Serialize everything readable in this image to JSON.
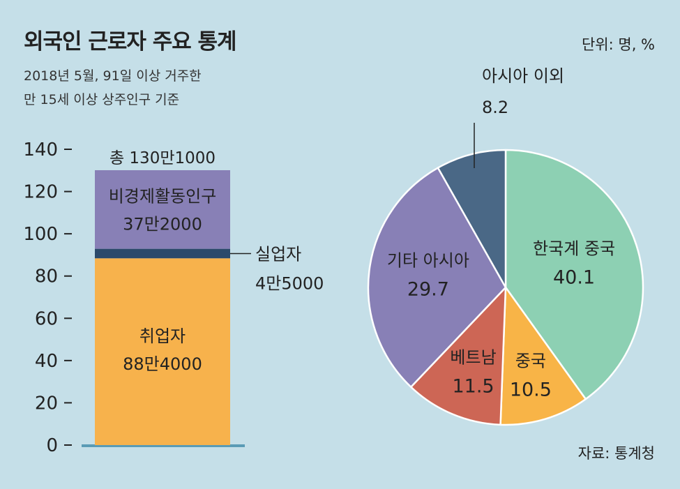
{
  "header": {
    "title": "외국인 근로자 주요 통계",
    "unit": "단위: 명, %",
    "subtitle_line1": "2018년 5월, 91일 이상 거주한",
    "subtitle_line2": "만 15세 이상 상주인구 기준",
    "source": "자료: 통계청"
  },
  "colors": {
    "background": "#c5dfe8",
    "employed": "#f7b24c",
    "unemployed": "#2c4a6b",
    "inactive": "#8880b6",
    "korean_chinese": "#8dd0b3",
    "chinese": "#f8b447",
    "vietnam": "#cd6655",
    "other_asia": "#8880b6",
    "non_asia": "#4a6886",
    "baseline": "#5a9bb5"
  },
  "chart_data": [
    {
      "type": "bar",
      "stacked": true,
      "ylim": [
        0,
        140
      ],
      "yticks": [
        "0",
        "20",
        "40",
        "60",
        "80",
        "100",
        "120",
        "140"
      ],
      "total_label": "총 130만1000",
      "segments": [
        {
          "name": "취업자",
          "value": 88.4,
          "label": "88만4000"
        },
        {
          "name": "실업자",
          "value": 4.5,
          "label": "4만5000"
        },
        {
          "name": "비경제활동인구",
          "value": 37.2,
          "label": "37만2000"
        }
      ]
    },
    {
      "type": "pie",
      "slices": [
        {
          "name": "한국계 중국",
          "value": 40.1,
          "label": "40.1"
        },
        {
          "name": "중국",
          "value": 10.5,
          "label": "10.5"
        },
        {
          "name": "베트남",
          "value": 11.5,
          "label": "11.5"
        },
        {
          "name": "기타 아시아",
          "value": 29.7,
          "label": "29.7"
        },
        {
          "name": "아시아 이외",
          "value": 8.2,
          "label": "8.2"
        }
      ]
    }
  ]
}
